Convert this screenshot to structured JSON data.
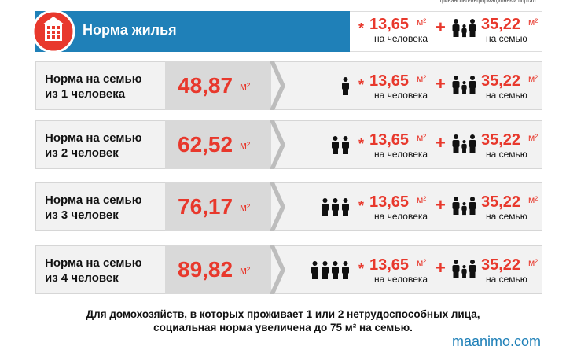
{
  "header": {
    "title": "Норма жилья",
    "logo_caption": "финансово-информационный портал"
  },
  "formula": {
    "per_person": "13,65",
    "per_person_label": "на человека",
    "per_family": "35,22",
    "per_family_label": "на семью",
    "unit": "м²",
    "plus": "+",
    "times": "*"
  },
  "rows": [
    {
      "line1": "Норма на семью",
      "line2": "из 1 человека",
      "value": "48,87",
      "people": 1
    },
    {
      "line1": "Норма на семью",
      "line2": "из 2 человек",
      "value": "62,52",
      "people": 2
    },
    {
      "line1": "Норма на семью",
      "line2": "из 3 человек",
      "value": "76,17",
      "people": 3
    },
    {
      "line1": "Норма на семью",
      "line2": "из 4 человек",
      "value": "89,82",
      "people": 4
    }
  ],
  "footer": {
    "line1": "Для домохозяйств, в которых проживает 1 или 2 нетрудоспособных лица,",
    "line2": "социальная норма увеличена до 75 м² на семью.",
    "site": "maanimo.com"
  }
}
